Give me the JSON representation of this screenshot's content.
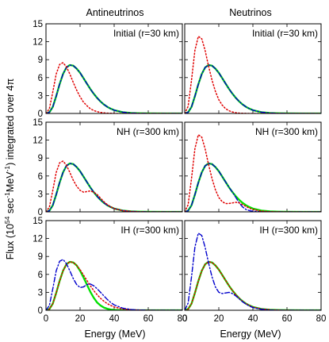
{
  "figure": {
    "column_titles": [
      "Antineutrinos",
      "Neutrinos"
    ],
    "xlabel": "Energy (MeV)",
    "ylabel_parts": [
      "Flux (10",
      "54",
      " sec",
      "-1",
      "MeV",
      "-1",
      ")  integrated over 4π"
    ],
    "colors": {
      "green": "#00e000",
      "red": "#e00000",
      "blue": "#0000cc"
    }
  },
  "chart_data": [
    {
      "type": "line",
      "panel": "top-left",
      "label": "Initial (r=30 km)",
      "xlim": [
        0,
        80
      ],
      "ylim": [
        0,
        15
      ],
      "xticks": [
        0,
        20,
        40,
        60,
        80
      ],
      "yticks": [
        0,
        3,
        6,
        9,
        12,
        15
      ],
      "x": [
        0,
        2,
        4,
        6,
        8,
        10,
        12,
        14,
        16,
        18,
        20,
        22,
        24,
        26,
        28,
        30,
        32,
        34,
        36,
        38,
        40,
        45,
        50,
        55,
        60,
        70,
        80
      ],
      "series": [
        {
          "color": "green",
          "dash": "solid",
          "values": [
            0,
            0.2,
            1.1,
            2.9,
            4.9,
            6.6,
            7.7,
            8.1,
            8.0,
            7.5,
            6.8,
            5.9,
            5.0,
            4.1,
            3.3,
            2.6,
            2.0,
            1.5,
            1.1,
            0.8,
            0.55,
            0.22,
            0.08,
            0.03,
            0.01,
            0,
            0
          ]
        },
        {
          "color": "blue",
          "dash": "dashdot",
          "values": [
            0,
            0.2,
            1.1,
            2.9,
            4.9,
            6.6,
            7.7,
            8.1,
            8.0,
            7.5,
            6.8,
            5.9,
            5.0,
            4.1,
            3.3,
            2.6,
            2.0,
            1.5,
            1.1,
            0.8,
            0.55,
            0.22,
            0.08,
            0.03,
            0.01,
            0,
            0
          ]
        },
        {
          "color": "red",
          "dash": "dotted",
          "values": [
            0,
            0.8,
            3.6,
            6.6,
            8.2,
            8.5,
            7.8,
            6.6,
            5.2,
            3.9,
            2.8,
            1.9,
            1.3,
            0.8,
            0.5,
            0.3,
            0.18,
            0.1,
            0.05,
            0.03,
            0.01,
            0,
            0,
            0,
            0,
            0,
            0
          ]
        }
      ]
    },
    {
      "type": "line",
      "panel": "top-right",
      "label": "Initial (r=30 km)",
      "xlim": [
        0,
        80
      ],
      "ylim": [
        0,
        15
      ],
      "xticks": [
        0,
        20,
        40,
        60,
        80
      ],
      "yticks": [
        0,
        3,
        6,
        9,
        12,
        15
      ],
      "x": [
        0,
        2,
        4,
        6,
        8,
        10,
        12,
        14,
        16,
        18,
        20,
        22,
        24,
        26,
        28,
        30,
        32,
        34,
        36,
        38,
        40,
        45,
        50,
        55,
        60,
        70,
        80
      ],
      "series": [
        {
          "color": "green",
          "dash": "solid",
          "values": [
            0,
            0.2,
            1.1,
            2.9,
            4.9,
            6.6,
            7.7,
            8.1,
            8.0,
            7.5,
            6.8,
            5.9,
            5.0,
            4.1,
            3.3,
            2.6,
            2.0,
            1.5,
            1.1,
            0.8,
            0.55,
            0.22,
            0.08,
            0.03,
            0.01,
            0,
            0
          ]
        },
        {
          "color": "blue",
          "dash": "dashdot",
          "values": [
            0,
            0.2,
            1.1,
            2.9,
            4.9,
            6.6,
            7.7,
            8.1,
            8.0,
            7.5,
            6.8,
            5.9,
            5.0,
            4.1,
            3.3,
            2.6,
            2.0,
            1.5,
            1.1,
            0.8,
            0.55,
            0.22,
            0.08,
            0.03,
            0.01,
            0,
            0
          ]
        },
        {
          "color": "red",
          "dash": "dotted",
          "values": [
            0,
            1.2,
            5.6,
            10.6,
            12.9,
            12.5,
            10.5,
            7.9,
            5.6,
            3.7,
            2.3,
            1.4,
            0.8,
            0.45,
            0.25,
            0.12,
            0.06,
            0.03,
            0.01,
            0,
            0,
            0,
            0,
            0,
            0,
            0,
            0
          ]
        }
      ]
    },
    {
      "type": "line",
      "panel": "middle-left",
      "label": "NH (r=300 km)",
      "xlim": [
        0,
        80
      ],
      "ylim": [
        0,
        15
      ],
      "xticks": [
        0,
        20,
        40,
        60,
        80
      ],
      "yticks": [
        0,
        3,
        6,
        9,
        12,
        15
      ],
      "x": [
        0,
        2,
        4,
        6,
        8,
        10,
        12,
        14,
        16,
        18,
        20,
        22,
        24,
        26,
        28,
        30,
        32,
        34,
        36,
        38,
        40,
        45,
        50,
        55,
        60,
        70,
        80
      ],
      "series": [
        {
          "color": "green",
          "dash": "solid",
          "values": [
            0,
            0.2,
            1.1,
            2.9,
            4.9,
            6.6,
            7.7,
            8.1,
            8.0,
            7.5,
            6.8,
            5.9,
            5.0,
            4.1,
            3.3,
            2.6,
            2.0,
            1.5,
            1.1,
            0.8,
            0.55,
            0.22,
            0.08,
            0.03,
            0.01,
            0,
            0
          ]
        },
        {
          "color": "blue",
          "dash": "dashdot",
          "values": [
            0,
            0.2,
            1.1,
            2.9,
            4.9,
            6.6,
            7.7,
            8.1,
            8.0,
            7.5,
            6.8,
            5.9,
            5.0,
            4.1,
            3.3,
            2.6,
            2.0,
            1.5,
            1.1,
            0.8,
            0.55,
            0.22,
            0.08,
            0.03,
            0.01,
            0,
            0
          ]
        },
        {
          "color": "red",
          "dash": "dotted",
          "values": [
            0,
            0.8,
            3.6,
            6.6,
            8.2,
            8.5,
            7.8,
            6.6,
            5.3,
            4.3,
            3.6,
            3.3,
            3.4,
            3.5,
            3.3,
            2.9,
            2.3,
            1.7,
            1.2,
            0.85,
            0.55,
            0.2,
            0.07,
            0.02,
            0,
            0,
            0
          ]
        }
      ]
    },
    {
      "type": "line",
      "panel": "middle-right",
      "label": "NH (r=300 km)",
      "xlim": [
        0,
        80
      ],
      "ylim": [
        0,
        15
      ],
      "xticks": [
        0,
        20,
        40,
        60,
        80
      ],
      "yticks": [
        0,
        3,
        6,
        9,
        12,
        15
      ],
      "x": [
        0,
        2,
        4,
        6,
        8,
        10,
        12,
        14,
        16,
        18,
        20,
        22,
        24,
        26,
        28,
        30,
        32,
        34,
        36,
        38,
        40,
        45,
        50,
        55,
        60,
        70,
        80
      ],
      "series": [
        {
          "color": "green",
          "dash": "solid",
          "values": [
            0,
            0.2,
            1.1,
            2.9,
            4.9,
            6.6,
            7.7,
            8.1,
            8.0,
            7.5,
            6.8,
            5.9,
            5.0,
            4.1,
            3.3,
            2.6,
            2.0,
            1.5,
            1.1,
            0.8,
            0.55,
            0.22,
            0.08,
            0.03,
            0.01,
            0,
            0
          ]
        },
        {
          "color": "blue",
          "dash": "dashdot",
          "values": [
            0,
            0.2,
            1.1,
            2.9,
            4.9,
            6.6,
            7.7,
            8.1,
            8.0,
            7.5,
            6.8,
            5.9,
            5.0,
            4.1,
            3.3,
            2.4,
            1.5,
            0.8,
            0.4,
            0.2,
            0.1,
            0.03,
            0.01,
            0,
            0,
            0,
            0
          ]
        },
        {
          "color": "red",
          "dash": "dotted",
          "values": [
            0,
            1.2,
            5.6,
            10.6,
            12.9,
            12.5,
            10.5,
            7.9,
            5.6,
            3.7,
            2.4,
            1.7,
            1.4,
            1.4,
            1.5,
            1.6,
            1.5,
            1.2,
            0.9,
            0.6,
            0.4,
            0.12,
            0.04,
            0.01,
            0,
            0,
            0
          ]
        }
      ]
    },
    {
      "type": "line",
      "panel": "bottom-left",
      "label": "IH (r=300 km)",
      "xlim": [
        0,
        80
      ],
      "ylim": [
        0,
        15
      ],
      "xticks": [
        0,
        20,
        40,
        60,
        80
      ],
      "yticks": [
        0,
        3,
        6,
        9,
        12,
        15
      ],
      "x": [
        0,
        2,
        4,
        6,
        8,
        10,
        12,
        14,
        16,
        18,
        20,
        22,
        24,
        26,
        28,
        30,
        32,
        34,
        36,
        38,
        40,
        45,
        50,
        55,
        60,
        70,
        80
      ],
      "series": [
        {
          "color": "green",
          "dash": "solid",
          "values": [
            0,
            0.2,
            1.1,
            2.9,
            4.9,
            6.6,
            7.7,
            8.1,
            8.0,
            7.5,
            6.6,
            5.5,
            4.3,
            3.1,
            2.1,
            1.3,
            0.8,
            0.45,
            0.25,
            0.12,
            0.06,
            0.01,
            0,
            0,
            0,
            0,
            0
          ]
        },
        {
          "color": "red",
          "dash": "dotted",
          "values": [
            0,
            0.2,
            1.1,
            2.9,
            4.9,
            6.6,
            7.7,
            8.1,
            8.0,
            7.5,
            6.8,
            5.9,
            5.0,
            4.1,
            3.3,
            2.6,
            2.0,
            1.5,
            1.1,
            0.8,
            0.55,
            0.22,
            0.08,
            0.03,
            0.01,
            0,
            0
          ]
        },
        {
          "color": "blue",
          "dash": "dashdot",
          "values": [
            0,
            0.8,
            3.6,
            6.6,
            8.2,
            8.5,
            7.8,
            6.6,
            5.3,
            4.3,
            3.8,
            3.9,
            4.3,
            4.4,
            4.1,
            3.6,
            3.0,
            2.4,
            1.8,
            1.3,
            0.9,
            0.35,
            0.12,
            0.04,
            0.01,
            0,
            0
          ]
        }
      ]
    },
    {
      "type": "line",
      "panel": "bottom-right",
      "label": "IH (r=300 km)",
      "xlim": [
        0,
        80
      ],
      "ylim": [
        0,
        15
      ],
      "xticks": [
        0,
        20,
        40,
        60,
        80
      ],
      "yticks": [
        0,
        3,
        6,
        9,
        12,
        15
      ],
      "x": [
        0,
        2,
        4,
        6,
        8,
        10,
        12,
        14,
        16,
        18,
        20,
        22,
        24,
        26,
        28,
        30,
        32,
        34,
        36,
        38,
        40,
        45,
        50,
        55,
        60,
        70,
        80
      ],
      "series": [
        {
          "color": "green",
          "dash": "solid",
          "values": [
            0,
            0.2,
            1.1,
            2.9,
            4.9,
            6.6,
            7.7,
            8.1,
            8.0,
            7.5,
            6.8,
            5.9,
            5.0,
            4.1,
            3.3,
            2.6,
            2.0,
            1.5,
            1.1,
            0.8,
            0.55,
            0.22,
            0.08,
            0.03,
            0.01,
            0,
            0
          ]
        },
        {
          "color": "red",
          "dash": "dotted",
          "values": [
            0,
            0.2,
            1.1,
            2.9,
            4.9,
            6.6,
            7.7,
            8.1,
            8.0,
            7.5,
            6.8,
            5.9,
            5.0,
            4.1,
            3.3,
            2.6,
            2.0,
            1.5,
            1.1,
            0.8,
            0.55,
            0.22,
            0.08,
            0.03,
            0.01,
            0,
            0
          ]
        },
        {
          "color": "blue",
          "dash": "dashdot",
          "values": [
            0,
            1.2,
            5.6,
            10.6,
            12.9,
            12.5,
            10.5,
            7.9,
            5.6,
            3.9,
            3.0,
            2.8,
            2.9,
            3.0,
            2.8,
            2.4,
            1.9,
            1.4,
            1.0,
            0.7,
            0.45,
            0.15,
            0.05,
            0.01,
            0,
            0,
            0
          ]
        }
      ]
    }
  ]
}
